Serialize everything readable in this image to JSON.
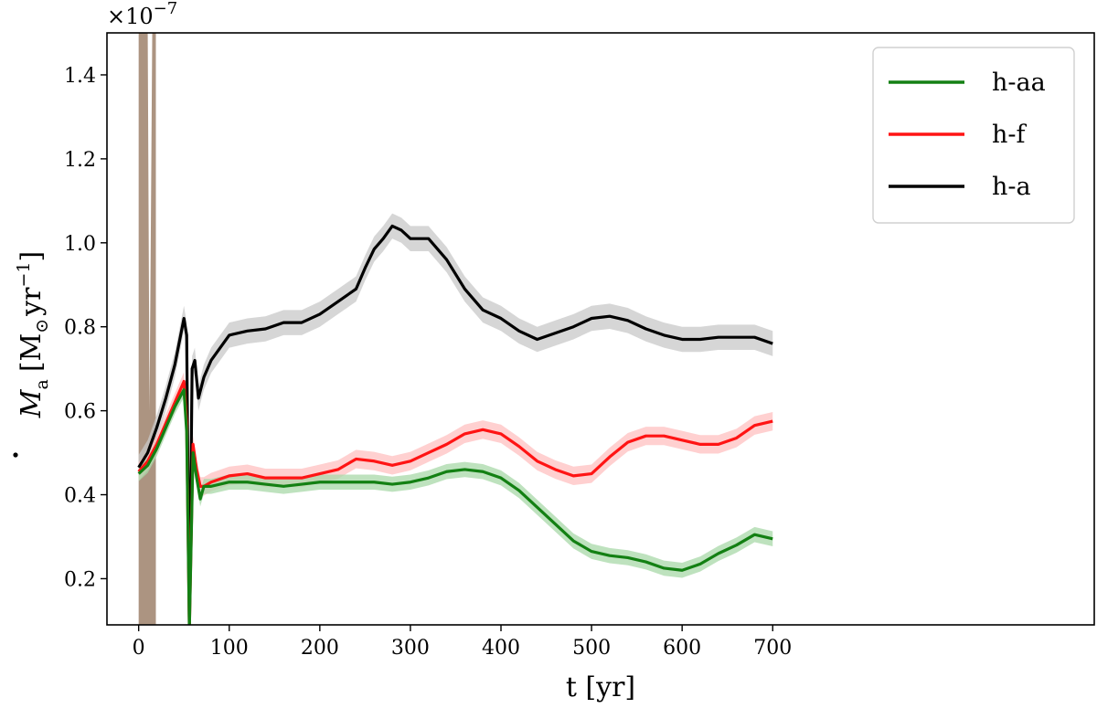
{
  "chart_data": {
    "type": "line",
    "xlabel": "t [yr]",
    "ylabel_main": "M",
    "ylabel_sub": "a",
    "ylabel_unit": "[M",
    "ylabel_unit_sub": "⊙",
    "ylabel_unit_tail": "yr",
    "ylabel_unit_exp": "−1",
    "ylabel_unit_close": "]",
    "offset_base": "×10",
    "offset_exp": "−7",
    "xlim": [
      -35,
      1055
    ],
    "ylim": [
      0.09,
      1.5
    ],
    "xticks": [
      0,
      100,
      200,
      300,
      400,
      500,
      600,
      700
    ],
    "xtick_labels": [
      "0",
      "100",
      "200",
      "300",
      "400",
      "500",
      "600",
      "700"
    ],
    "yticks": [
      0.2,
      0.4,
      0.6,
      0.8,
      1.0,
      1.2,
      1.4
    ],
    "ytick_labels": [
      "0.2",
      "0.4",
      "0.6",
      "0.8",
      "1.0",
      "1.2",
      "1.4"
    ],
    "legend_position": "top-right",
    "series": [
      {
        "name": "h-aa",
        "color": "#138013",
        "band_color": "#a8d8a8",
        "band": 0.018,
        "points": [
          [
            0,
            0.45
          ],
          [
            10,
            0.47
          ],
          [
            20,
            0.51
          ],
          [
            30,
            0.56
          ],
          [
            40,
            0.61
          ],
          [
            50,
            0.65
          ],
          [
            53,
            0.55
          ],
          [
            56,
            0.08
          ],
          [
            60,
            0.5
          ],
          [
            64,
            0.44
          ],
          [
            68,
            0.39
          ],
          [
            72,
            0.42
          ],
          [
            80,
            0.42
          ],
          [
            100,
            0.43
          ],
          [
            120,
            0.43
          ],
          [
            140,
            0.425
          ],
          [
            160,
            0.42
          ],
          [
            180,
            0.425
          ],
          [
            200,
            0.43
          ],
          [
            220,
            0.43
          ],
          [
            240,
            0.43
          ],
          [
            260,
            0.43
          ],
          [
            280,
            0.425
          ],
          [
            300,
            0.43
          ],
          [
            320,
            0.44
          ],
          [
            340,
            0.455
          ],
          [
            360,
            0.46
          ],
          [
            380,
            0.455
          ],
          [
            400,
            0.44
          ],
          [
            420,
            0.41
          ],
          [
            440,
            0.37
          ],
          [
            460,
            0.33
          ],
          [
            480,
            0.29
          ],
          [
            500,
            0.265
          ],
          [
            520,
            0.255
          ],
          [
            540,
            0.25
          ],
          [
            560,
            0.24
          ],
          [
            580,
            0.225
          ],
          [
            600,
            0.22
          ],
          [
            620,
            0.235
          ],
          [
            640,
            0.26
          ],
          [
            660,
            0.28
          ],
          [
            680,
            0.305
          ],
          [
            700,
            0.295
          ]
        ]
      },
      {
        "name": "h-f",
        "color": "#ff1414",
        "band_color": "#ffc0c0",
        "band": 0.022,
        "points": [
          [
            0,
            0.455
          ],
          [
            10,
            0.48
          ],
          [
            20,
            0.52
          ],
          [
            30,
            0.57
          ],
          [
            40,
            0.62
          ],
          [
            50,
            0.67
          ],
          [
            53,
            0.57
          ],
          [
            56,
            0.08
          ],
          [
            60,
            0.52
          ],
          [
            64,
            0.46
          ],
          [
            68,
            0.42
          ],
          [
            72,
            0.42
          ],
          [
            80,
            0.43
          ],
          [
            100,
            0.445
          ],
          [
            120,
            0.45
          ],
          [
            140,
            0.44
          ],
          [
            160,
            0.44
          ],
          [
            180,
            0.44
          ],
          [
            200,
            0.45
          ],
          [
            220,
            0.46
          ],
          [
            240,
            0.485
          ],
          [
            260,
            0.48
          ],
          [
            280,
            0.47
          ],
          [
            300,
            0.48
          ],
          [
            320,
            0.5
          ],
          [
            340,
            0.52
          ],
          [
            360,
            0.545
          ],
          [
            380,
            0.555
          ],
          [
            400,
            0.545
          ],
          [
            420,
            0.515
          ],
          [
            440,
            0.48
          ],
          [
            460,
            0.46
          ],
          [
            480,
            0.445
          ],
          [
            500,
            0.45
          ],
          [
            520,
            0.49
          ],
          [
            540,
            0.525
          ],
          [
            560,
            0.54
          ],
          [
            580,
            0.54
          ],
          [
            600,
            0.53
          ],
          [
            620,
            0.52
          ],
          [
            640,
            0.52
          ],
          [
            660,
            0.535
          ],
          [
            680,
            0.565
          ],
          [
            700,
            0.575
          ]
        ]
      },
      {
        "name": "h-a",
        "color": "#000000",
        "band_color": "#c8c8c8",
        "band": 0.03,
        "points": [
          [
            0,
            0.465
          ],
          [
            10,
            0.5
          ],
          [
            20,
            0.56
          ],
          [
            30,
            0.63
          ],
          [
            40,
            0.71
          ],
          [
            50,
            0.82
          ],
          [
            53,
            0.78
          ],
          [
            56,
            0.08
          ],
          [
            59,
            0.7
          ],
          [
            62,
            0.72
          ],
          [
            66,
            0.63
          ],
          [
            72,
            0.68
          ],
          [
            80,
            0.72
          ],
          [
            90,
            0.75
          ],
          [
            100,
            0.78
          ],
          [
            120,
            0.79
          ],
          [
            140,
            0.795
          ],
          [
            160,
            0.81
          ],
          [
            180,
            0.81
          ],
          [
            200,
            0.83
          ],
          [
            220,
            0.86
          ],
          [
            240,
            0.89
          ],
          [
            250,
            0.94
          ],
          [
            260,
            0.985
          ],
          [
            270,
            1.01
          ],
          [
            280,
            1.04
          ],
          [
            290,
            1.03
          ],
          [
            300,
            1.01
          ],
          [
            320,
            1.01
          ],
          [
            340,
            0.96
          ],
          [
            360,
            0.89
          ],
          [
            380,
            0.84
          ],
          [
            400,
            0.82
          ],
          [
            420,
            0.79
          ],
          [
            440,
            0.77
          ],
          [
            460,
            0.785
          ],
          [
            480,
            0.8
          ],
          [
            500,
            0.82
          ],
          [
            520,
            0.825
          ],
          [
            540,
            0.815
          ],
          [
            560,
            0.795
          ],
          [
            580,
            0.78
          ],
          [
            600,
            0.77
          ],
          [
            620,
            0.77
          ],
          [
            640,
            0.775
          ],
          [
            660,
            0.775
          ],
          [
            680,
            0.775
          ],
          [
            700,
            0.76
          ]
        ]
      }
    ]
  }
}
